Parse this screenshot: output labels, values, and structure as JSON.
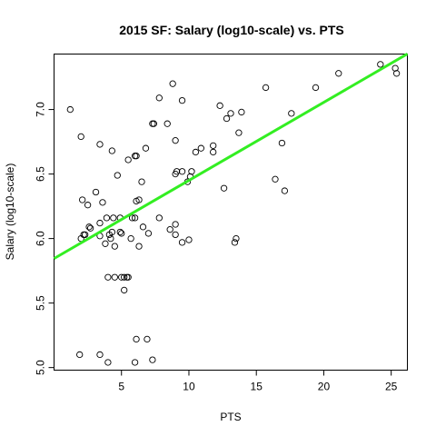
{
  "chart_data": {
    "type": "scatter",
    "title": "2015 SF: Salary (log10-scale) vs. PTS",
    "xlabel": "PTS",
    "ylabel": "Salary (log10-scale)",
    "xlim": [
      0,
      26.2
    ],
    "ylim": [
      4.98,
      7.43
    ],
    "x_ticks": [
      5,
      10,
      15,
      20,
      25
    ],
    "x_tick_labels": [
      "5",
      "10",
      "15",
      "20",
      "25"
    ],
    "y_ticks": [
      5.0,
      5.5,
      6.0,
      6.5,
      7.0
    ],
    "y_tick_labels": [
      "5.0",
      "5.5",
      "6.0",
      "6.5",
      "7.0"
    ],
    "grid": false,
    "fit_line": {
      "color": "#33ee22",
      "x": [
        0,
        26.2
      ],
      "y": [
        5.845,
        7.431
      ]
    },
    "points": [
      [
        1.2,
        7.0
      ],
      [
        2.0,
        6.79
      ],
      [
        4.3,
        6.68
      ],
      [
        3.4,
        6.73
      ],
      [
        2.1,
        6.3
      ],
      [
        2.5,
        6.26
      ],
      [
        3.1,
        6.36
      ],
      [
        3.6,
        6.28
      ],
      [
        2.6,
        6.09
      ],
      [
        2.7,
        6.08
      ],
      [
        2.2,
        6.03
      ],
      [
        2.3,
        6.03
      ],
      [
        2.0,
        6.0
      ],
      [
        3.4,
        6.12
      ],
      [
        3.9,
        6.16
      ],
      [
        4.4,
        6.16
      ],
      [
        4.9,
        6.16
      ],
      [
        3.4,
        6.02
      ],
      [
        3.8,
        5.96
      ],
      [
        4.1,
        6.03
      ],
      [
        4.2,
        6.0
      ],
      [
        4.5,
        5.94
      ],
      [
        5.0,
        6.04
      ],
      [
        4.9,
        6.05
      ],
      [
        4.3,
        6.05
      ],
      [
        5.8,
        6.16
      ],
      [
        6.0,
        6.16
      ],
      [
        5.5,
        6.61
      ],
      [
        6.0,
        6.64
      ],
      [
        6.1,
        6.64
      ],
      [
        6.5,
        6.44
      ],
      [
        4.7,
        6.49
      ],
      [
        6.8,
        6.7
      ],
      [
        6.1,
        6.29
      ],
      [
        6.3,
        6.3
      ],
      [
        5.0,
        5.7
      ],
      [
        5.2,
        5.7
      ],
      [
        5.4,
        5.7
      ],
      [
        5.5,
        5.7
      ],
      [
        4.0,
        5.7
      ],
      [
        4.5,
        5.7
      ],
      [
        5.2,
        5.6
      ],
      [
        6.3,
        5.94
      ],
      [
        6.6,
        6.09
      ],
      [
        7.0,
        6.04
      ],
      [
        5.7,
        6.0
      ],
      [
        6.1,
        5.22
      ],
      [
        6.9,
        5.22
      ],
      [
        7.3,
        5.06
      ],
      [
        6.0,
        5.04
      ],
      [
        4.0,
        5.04
      ],
      [
        3.4,
        5.1
      ],
      [
        1.9,
        5.1
      ],
      [
        7.3,
        6.89
      ],
      [
        7.4,
        6.89
      ],
      [
        7.8,
        7.09
      ],
      [
        8.4,
        6.89
      ],
      [
        8.8,
        7.2
      ],
      [
        9.5,
        7.07
      ],
      [
        7.8,
        6.16
      ],
      [
        9.0,
        6.5
      ],
      [
        9.1,
        6.52
      ],
      [
        9.5,
        6.52
      ],
      [
        9.0,
        6.76
      ],
      [
        8.6,
        6.07
      ],
      [
        9.0,
        6.11
      ],
      [
        9.0,
        6.03
      ],
      [
        9.5,
        5.97
      ],
      [
        10.0,
        5.99
      ],
      [
        9.9,
        6.44
      ],
      [
        10.1,
        6.48
      ],
      [
        10.2,
        6.52
      ],
      [
        10.5,
        6.67
      ],
      [
        10.9,
        6.7
      ],
      [
        11.8,
        6.72
      ],
      [
        11.8,
        6.67
      ],
      [
        12.3,
        7.03
      ],
      [
        12.8,
        6.93
      ],
      [
        13.1,
        6.97
      ],
      [
        13.9,
        6.98
      ],
      [
        13.7,
        6.82
      ],
      [
        12.6,
        6.39
      ],
      [
        13.4,
        5.97
      ],
      [
        13.5,
        6.0
      ],
      [
        15.7,
        7.17
      ],
      [
        16.4,
        6.46
      ],
      [
        16.9,
        6.74
      ],
      [
        17.1,
        6.37
      ],
      [
        17.6,
        6.97
      ],
      [
        19.4,
        7.17
      ],
      [
        21.1,
        7.28
      ],
      [
        24.2,
        7.35
      ],
      [
        25.3,
        7.32
      ],
      [
        25.4,
        7.28
      ]
    ]
  }
}
